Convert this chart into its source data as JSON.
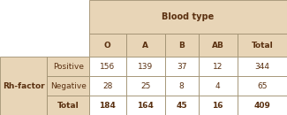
{
  "title": "Blood type",
  "col_headers": [
    "O",
    "A",
    "B",
    "AB",
    "Total"
  ],
  "row_headers": [
    "Positive",
    "Negative",
    "Total"
  ],
  "side_label": "Rh-factor",
  "data": [
    [
      156,
      139,
      37,
      12,
      344
    ],
    [
      28,
      25,
      8,
      4,
      65
    ],
    [
      184,
      164,
      45,
      16,
      409
    ]
  ],
  "header_bg": "#e8d5b7",
  "cell_bg": "#ffffff",
  "side_bg": "#e8d5b7",
  "border_color": "#a09070",
  "text_color": "#5a3010",
  "fontsize": 6.5,
  "figsize": [
    3.25,
    1.3
  ],
  "dpi": 100
}
